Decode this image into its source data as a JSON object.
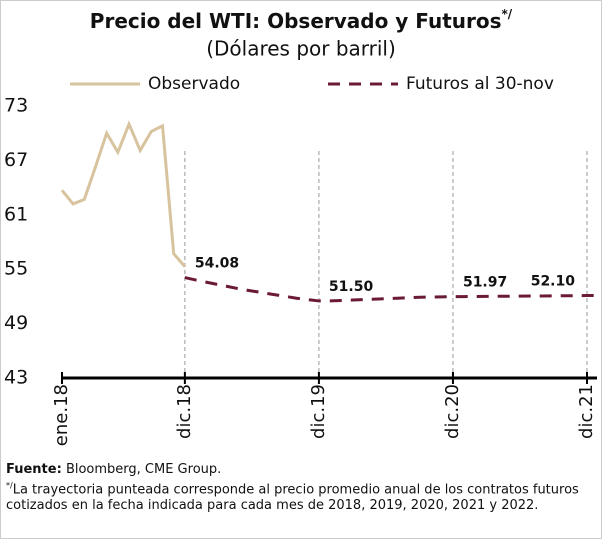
{
  "chart_data": {
    "type": "line",
    "title": "Precio del WTI: Observado y Futuros",
    "title_mark": "*/",
    "subtitle": "(Dólares por barril)",
    "categories": [
      "ene.18",
      null,
      null,
      null,
      null,
      null,
      null,
      null,
      null,
      null,
      null,
      "dic.18",
      null,
      null,
      null,
      null,
      null,
      null,
      null,
      null,
      null,
      null,
      null,
      "dic.19",
      null,
      null,
      null,
      null,
      null,
      null,
      null,
      null,
      null,
      null,
      null,
      "dic.20",
      null,
      null,
      null,
      null,
      null,
      null,
      null,
      null,
      null,
      null,
      null,
      "dic.21",
      null
    ],
    "series": [
      {
        "name": "Observado",
        "color": "#d8c39f",
        "dashed": false,
        "values": [
          63.7,
          62.2,
          62.7,
          66.3,
          70.0,
          67.9,
          71.0,
          68.1,
          70.2,
          70.8,
          56.7,
          55.3,
          null,
          null,
          null,
          null,
          null,
          null,
          null,
          null,
          null,
          null,
          null,
          null,
          null,
          null,
          null,
          null,
          null,
          null,
          null,
          null,
          null,
          null,
          null,
          null,
          null,
          null,
          null,
          null,
          null,
          null,
          null,
          null,
          null,
          null,
          null,
          null,
          null
        ]
      },
      {
        "name": "Futuros al 30-nov",
        "color": "#6b1a33",
        "dashed": true,
        "values": [
          null,
          null,
          null,
          null,
          null,
          null,
          null,
          null,
          null,
          null,
          null,
          54.08,
          53.8,
          53.55,
          53.3,
          53.05,
          52.8,
          52.6,
          52.4,
          52.2,
          52.0,
          51.8,
          51.65,
          51.5,
          51.5,
          51.55,
          51.6,
          51.65,
          51.7,
          51.75,
          51.8,
          51.85,
          51.9,
          51.93,
          51.95,
          51.97,
          51.98,
          51.99,
          52.0,
          52.01,
          52.02,
          52.03,
          52.04,
          52.05,
          52.06,
          52.07,
          52.08,
          52.1,
          52.1
        ],
        "value_labels": [
          null,
          null,
          null,
          null,
          null,
          null,
          null,
          null,
          null,
          null,
          null,
          "54.08",
          null,
          null,
          null,
          null,
          null,
          null,
          null,
          null,
          null,
          null,
          null,
          "51.50",
          null,
          null,
          null,
          null,
          null,
          null,
          null,
          null,
          null,
          null,
          null,
          "51.97",
          null,
          null,
          null,
          null,
          null,
          null,
          null,
          null,
          null,
          null,
          null,
          "52.10",
          null
        ]
      }
    ],
    "ylim": [
      43,
      73
    ],
    "yticks": [
      43,
      49,
      55,
      61,
      67,
      73
    ],
    "grid": "x-dashed",
    "source_label": "Fuente:",
    "source": "Bloomberg, CME Group.",
    "note_mark": "*/",
    "note": "La trayectoria punteada corresponde al precio promedio anual de los contratos futuros cotizados en la fecha indicada para cada mes de 2018, 2019, 2020, 2021 y 2022."
  }
}
